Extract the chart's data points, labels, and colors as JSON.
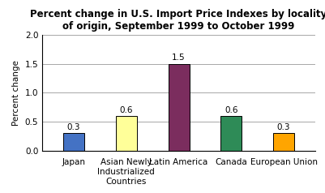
{
  "categories": [
    "Japan",
    "Asian Newly\nIndustrialized\nCountries",
    "Latin America",
    "Canada",
    "European Union"
  ],
  "values": [
    0.3,
    0.6,
    1.5,
    0.6,
    0.3
  ],
  "bar_colors": [
    "#4472c4",
    "#ffff99",
    "#7b2d5e",
    "#2e8b57",
    "#ffa500"
  ],
  "title": "Percent change in U.S. Import Price Indexes by locality\nof origin, September 1999 to October 1999",
  "ylabel": "Percent change",
  "ylim": [
    0,
    2.0
  ],
  "yticks": [
    0.0,
    0.5,
    1.0,
    1.5,
    2.0
  ],
  "title_fontsize": 8.5,
  "axis_fontsize": 7.5,
  "label_fontsize": 7.5,
  "tick_fontsize": 7.5,
  "background_color": "#ffffff",
  "bar_edge_color": "#000000",
  "bar_width": 0.4
}
